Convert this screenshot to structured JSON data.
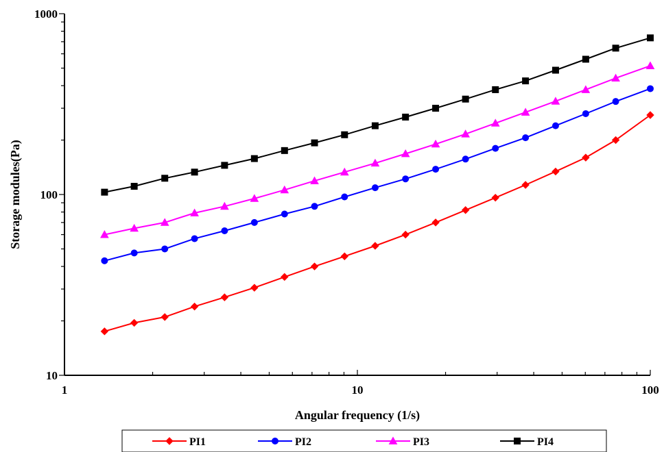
{
  "chart_data": {
    "type": "line",
    "title": "",
    "xlabel": "Angular frequency (1/s)",
    "ylabel": "Storage modules(Pa)",
    "x_scale": "log",
    "y_scale": "log",
    "xlim": [
      1,
      100
    ],
    "ylim": [
      10,
      1000
    ],
    "x_ticks": [
      "1",
      "10",
      "100"
    ],
    "y_ticks": [
      "10",
      "100",
      "1000"
    ],
    "grid": false,
    "legend_position": "bottom",
    "x": [
      1.37,
      1.73,
      2.2,
      2.78,
      3.52,
      4.45,
      5.64,
      7.14,
      9.04,
      11.5,
      14.6,
      18.5,
      23.4,
      29.6,
      37.5,
      47.5,
      60.2,
      76.2,
      100
    ],
    "series": [
      {
        "name": "PI1",
        "color": "#ff0000",
        "marker": "diamond",
        "values": [
          17.5,
          19.5,
          21,
          24,
          27,
          30.5,
          35,
          40,
          45.5,
          52,
          60,
          70,
          82,
          96,
          113,
          134,
          160,
          200,
          275
        ]
      },
      {
        "name": "PI2",
        "color": "#0000ff",
        "marker": "circle",
        "values": [
          43,
          47.5,
          50,
          57,
          63,
          70,
          78,
          86,
          97,
          109,
          122,
          138,
          157,
          180,
          206,
          240,
          280,
          327,
          385
        ]
      },
      {
        "name": "PI3",
        "color": "#ff00ff",
        "marker": "triangle",
        "values": [
          60,
          65,
          70,
          79,
          86,
          95,
          106,
          119,
          133,
          149,
          168,
          190,
          216,
          248,
          285,
          328,
          380,
          440,
          515
        ]
      },
      {
        "name": "PI4",
        "color": "#000000",
        "marker": "square",
        "values": [
          103,
          111,
          123,
          133,
          145,
          158,
          175,
          193,
          214,
          240,
          268,
          300,
          337,
          380,
          425,
          487,
          560,
          645,
          735
        ]
      }
    ]
  }
}
